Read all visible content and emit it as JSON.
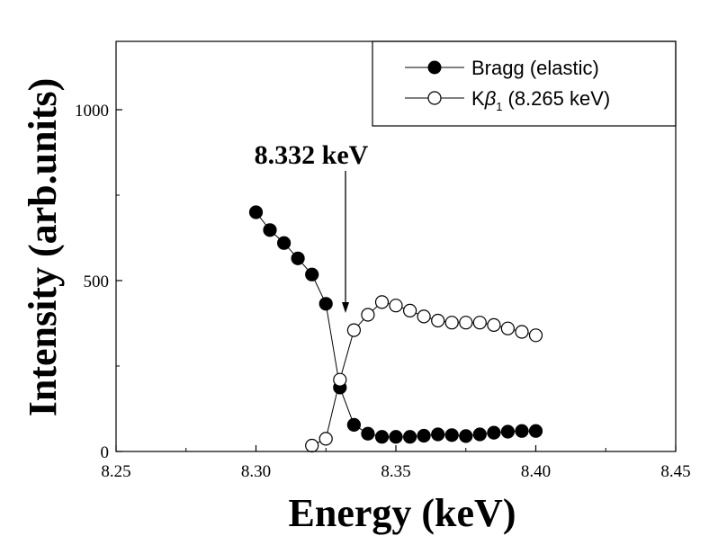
{
  "chart_data": {
    "type": "scatter",
    "title": "",
    "xlabel": "Energy (keV)",
    "ylabel": "Intensity (arb.units)",
    "xlim": [
      8.25,
      8.45
    ],
    "ylim": [
      0,
      1200
    ],
    "xticks": [
      8.25,
      8.3,
      8.35,
      8.4,
      8.45
    ],
    "xtick_labels": [
      "8.25",
      "8.30",
      "8.35",
      "8.40",
      "8.45"
    ],
    "yticks": [
      0,
      500,
      1000
    ],
    "ytick_labels": [
      "0",
      "500",
      "1000"
    ],
    "grid": false,
    "legend_position": "top-right",
    "annotation": {
      "text": "8.332 keV",
      "x": 8.332,
      "y": 400
    },
    "series": [
      {
        "name": "Bragg (elastic)",
        "marker": "filled-circle",
        "color": "#000000",
        "x": [
          8.3,
          8.305,
          8.31,
          8.315,
          8.32,
          8.325,
          8.33,
          8.335,
          8.34,
          8.345,
          8.35,
          8.355,
          8.36,
          8.365,
          8.37,
          8.375,
          8.38,
          8.385,
          8.39,
          8.395,
          8.4
        ],
        "y": [
          700,
          648,
          610,
          565,
          518,
          432,
          187,
          78,
          52,
          43,
          43,
          43,
          46,
          50,
          48,
          45,
          50,
          55,
          58,
          60,
          60
        ]
      },
      {
        "name_main": "K",
        "name_symbol": "β",
        "name_sub": "1",
        "name_rest": "(8.265 keV)",
        "marker": "open-circle",
        "color": "#000000",
        "x": [
          8.32,
          8.325,
          8.33,
          8.335,
          8.34,
          8.345,
          8.35,
          8.355,
          8.36,
          8.365,
          8.37,
          8.375,
          8.38,
          8.385,
          8.39,
          8.395,
          8.4
        ],
        "y": [
          17,
          37,
          210,
          355,
          400,
          437,
          427,
          412,
          395,
          383,
          377,
          377,
          377,
          370,
          360,
          350,
          340
        ]
      }
    ]
  }
}
